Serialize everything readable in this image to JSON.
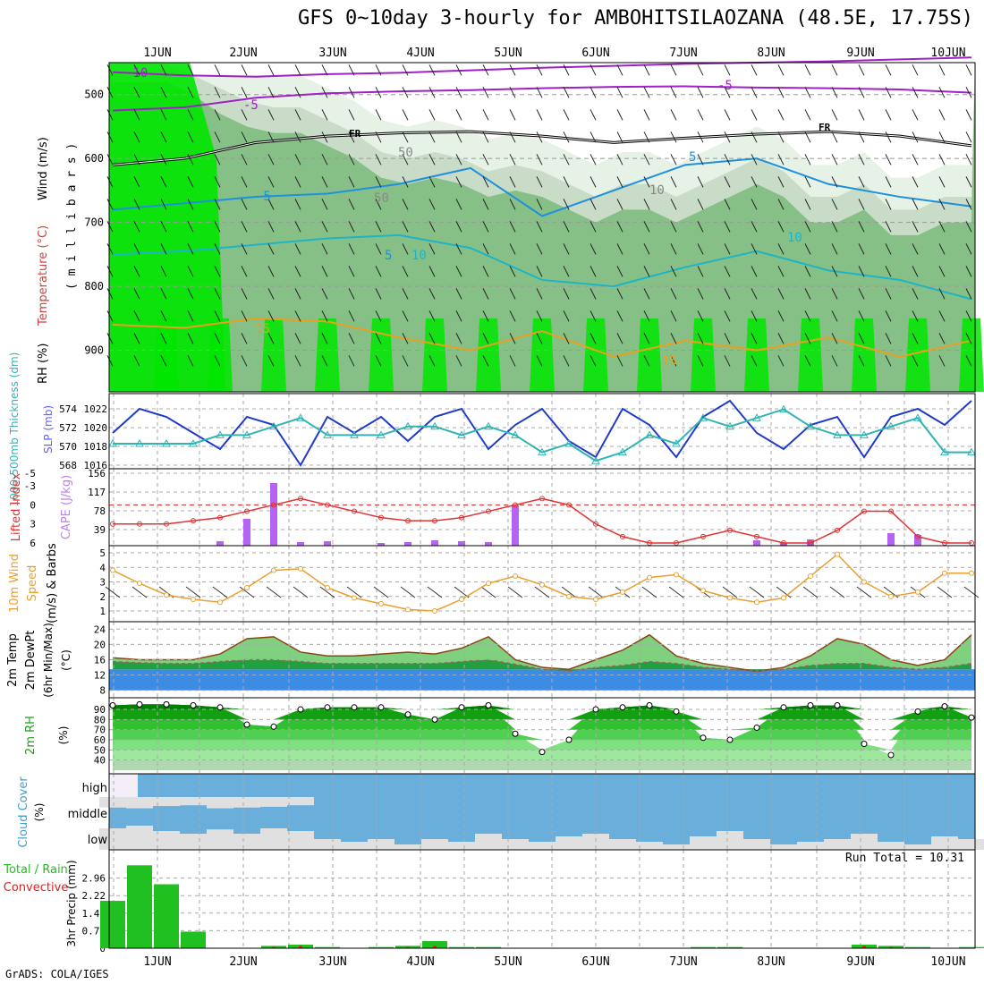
{
  "title": "GFS 0~10day 3-hourly for AMBOHITSILAOZANA (48.5E, 17.75S)",
  "credit": "GrADS: COLA/IGES",
  "run_total": "Run Total = 10.31",
  "colors": {
    "rh_light": "#e6f2e6",
    "rh_mid": "#c8dcc8",
    "rh_dark": "#87c087",
    "rh_green": "#00e600",
    "temp_purple": "#a020c8",
    "temp_blue": "#1e90dc",
    "temp_cyan": "#1eb4c8",
    "temp_orange": "#e8a020",
    "slp": "#1e3cc8",
    "thickness": "#30b4b4",
    "lifted": "#e03232",
    "cape": "#b464f0",
    "wind10": "#e8a030",
    "temp_fill": "#7fd07f",
    "temp_top": "#f0f070",
    "dew_fill": "#20a040",
    "blue_band": "#3c8ce6",
    "cloud": "#6aaedc",
    "cloud_bg": "#e0e0e0",
    "precip": "#20c020",
    "conv": "#e02020"
  },
  "chart_data": [
    {
      "type": "heatmap",
      "panel": "upper-air",
      "xticks": [
        "1JUN",
        "2JUN",
        "3JUN",
        "4JUN",
        "5JUN",
        "6JUN",
        "7JUN",
        "8JUN",
        "9JUN",
        "10JUN"
      ],
      "yticks": [
        500,
        600,
        700,
        800,
        900
      ],
      "ylabel_parts": [
        "RH (%)",
        "Temperature (°C)",
        "Wind (m/s)"
      ],
      "ylabel_units": "( m i l l i b a r s )",
      "contour_labels": [
        "-10",
        "-5",
        "-5",
        "FR",
        "FR",
        "-5",
        "5",
        "5",
        "10",
        "10",
        "15",
        "15",
        "50",
        "50",
        "10"
      ],
      "isotherms": [
        {
          "label": "-10",
          "color": "temp_purple",
          "p": [
            465,
            470,
            472,
            468,
            466,
            462,
            458,
            455,
            452,
            450,
            448,
            445,
            442
          ]
        },
        {
          "label": "-5",
          "color": "temp_purple",
          "p": [
            525,
            520,
            505,
            498,
            495,
            493,
            490,
            488,
            487,
            489,
            490,
            492,
            497
          ]
        },
        {
          "label": "FR",
          "color": "black",
          "p": [
            610,
            600,
            575,
            565,
            560,
            558,
            565,
            575,
            568,
            562,
            558,
            565,
            580
          ]
        },
        {
          "label": "5",
          "color": "temp_blue",
          "p": [
            680,
            670,
            660,
            655,
            640,
            615,
            690,
            650,
            610,
            600,
            640,
            660,
            675
          ]
        },
        {
          "label": "10",
          "color": "temp_cyan",
          "p": [
            750,
            745,
            735,
            725,
            720,
            740,
            790,
            800,
            770,
            745,
            775,
            790,
            820
          ]
        },
        {
          "label": "15",
          "color": "temp_orange",
          "p": [
            860,
            865,
            850,
            855,
            880,
            900,
            870,
            910,
            885,
            900,
            880,
            910,
            885
          ]
        }
      ]
    },
    {
      "type": "line",
      "panel": "slp-thickness",
      "yticks_left": [
        "574",
        "572",
        "570",
        "568"
      ],
      "yticks_right": [
        "1022",
        "1020",
        "1018",
        "1016"
      ],
      "ylabel_left": "1000-500mb Thickness (dm)",
      "ylabel_right": "SLP (mb)",
      "series": [
        {
          "key": "slp",
          "y": [
            1020,
            1023,
            1022,
            1020,
            1018,
            1022,
            1021,
            1016,
            1022,
            1020,
            1022,
            1019,
            1022,
            1023,
            1018,
            1021,
            1023,
            1019,
            1017,
            1023,
            1021,
            1017,
            1022,
            1024,
            1020,
            1018,
            1021,
            1022,
            1017,
            1022,
            1023,
            1021,
            1024
          ],
          "range": [
            1016,
            1024
          ]
        },
        {
          "key": "thickness",
          "y": [
            570,
            570,
            570,
            570,
            571,
            571,
            572,
            573,
            571,
            571,
            571,
            572,
            572,
            571,
            572,
            571,
            569,
            570,
            568,
            569,
            571,
            570,
            573,
            572,
            573,
            574,
            572,
            571,
            571,
            572,
            573,
            569,
            569
          ],
          "range": [
            567.5,
            575
          ]
        }
      ]
    },
    {
      "type": "bar",
      "panel": "lifted-cape",
      "yticks_left": [
        "-5",
        "-3",
        "0",
        "3",
        "6"
      ],
      "yticks_right": [
        "156",
        "117",
        "78",
        "39"
      ],
      "ylabel_left": "Lifted Index",
      "ylabel_right": "CAPE (J/kg)",
      "li_line": [
        3,
        3,
        3,
        2.5,
        2,
        1,
        0,
        -1,
        0,
        1,
        2,
        2.5,
        2.5,
        2,
        1,
        0,
        -1,
        0,
        3,
        5,
        6,
        6,
        5,
        4,
        5,
        6,
        6,
        4,
        1,
        1,
        5,
        6,
        6
      ],
      "cape": [
        0,
        0,
        0,
        0,
        10,
        60,
        140,
        8,
        10,
        0,
        6,
        8,
        12,
        10,
        8,
        90,
        0,
        0,
        0,
        0,
        0,
        0,
        0,
        0,
        12,
        6,
        14,
        0,
        0,
        28,
        24,
        0,
        0
      ]
    },
    {
      "type": "line",
      "panel": "wind10",
      "yticks": [
        "5",
        "4",
        "3",
        "2",
        "1"
      ],
      "ylabel": "10m Wind Speed (m/s) & Barbs",
      "y": [
        3.8,
        2.9,
        2.1,
        1.8,
        1.6,
        2.6,
        3.8,
        3.9,
        2.6,
        1.9,
        1.5,
        1.1,
        1.0,
        1.8,
        2.9,
        3.4,
        2.8,
        2.0,
        1.8,
        2.3,
        3.3,
        3.5,
        2.4,
        1.9,
        1.6,
        1.9,
        3.4,
        4.9,
        3.0,
        2.0,
        2.3,
        3.6,
        3.6
      ]
    },
    {
      "type": "area",
      "panel": "temp-dew",
      "yticks": [
        "24",
        "20",
        "16",
        "12",
        "8"
      ],
      "ylabel": "2m Temp 2m DewPt (6hr Min/Max) (°C)",
      "temp": [
        16.5,
        16,
        16,
        16,
        17.5,
        21.5,
        22,
        18,
        17,
        17,
        17.5,
        18,
        17.5,
        19,
        22,
        16,
        14,
        13.5,
        16,
        18.5,
        22.5,
        17,
        15,
        14,
        13,
        14,
        17,
        21.5,
        20,
        16,
        14.5,
        16,
        22.5
      ],
      "dew": [
        15.5,
        15.2,
        15,
        15,
        15.5,
        16,
        16,
        15.5,
        15,
        15,
        15,
        15,
        15,
        15.5,
        16,
        14.8,
        13.5,
        13,
        14,
        14.5,
        15.5,
        15,
        14,
        13.5,
        13,
        13.5,
        14.5,
        15,
        15,
        14,
        13.5,
        14,
        15
      ]
    },
    {
      "type": "area",
      "panel": "rh2m",
      "yticks": [
        "90",
        "80",
        "70",
        "60",
        "50",
        "40"
      ],
      "ylabel": "2m RH (%)",
      "y": [
        94,
        95,
        95,
        94,
        92,
        75,
        73,
        90,
        92,
        92,
        92,
        85,
        80,
        92,
        94,
        66,
        48,
        60,
        90,
        92,
        94,
        88,
        62,
        60,
        72,
        92,
        94,
        94,
        56,
        45,
        88,
        93,
        82
      ]
    },
    {
      "type": "area",
      "panel": "cloud",
      "yticks": [
        "high",
        "middle",
        "low"
      ],
      "ylabel": "Cloud Cover (%)",
      "low": [
        40,
        45,
        35,
        30,
        38,
        30,
        40,
        35,
        20,
        15,
        20,
        10,
        20,
        15,
        30,
        20,
        15,
        25,
        30,
        20,
        15,
        10,
        25,
        35,
        20,
        10,
        15,
        20,
        30,
        15,
        10,
        25,
        20
      ],
      "mid": [
        70,
        75,
        60,
        55,
        75,
        70,
        65,
        55,
        0,
        0,
        0,
        0,
        0,
        0,
        0,
        0,
        0,
        0,
        0,
        0,
        0,
        0,
        0,
        0,
        0,
        0,
        0,
        0,
        0,
        0,
        0,
        0,
        0
      ]
    },
    {
      "type": "bar",
      "panel": "precip",
      "yticks": [
        "2.96",
        "2.22",
        "1.48",
        "0.74",
        "0"
      ],
      "ylabel_left": "Total / Rain",
      "ylabel_conv": "Convective",
      "ylabel": "3hr Precip (mm)",
      "total": [
        2,
        3.5,
        2.7,
        0.7,
        0,
        0,
        0.1,
        0.15,
        0.05,
        0,
        0.05,
        0.1,
        0.3,
        0.05,
        0.05,
        0,
        0,
        0,
        0,
        0,
        0,
        0,
        0.05,
        0.05,
        0,
        0,
        0,
        0,
        0.15,
        0.1,
        0.05,
        0,
        0.05
      ],
      "conv": [
        0,
        0,
        0,
        0,
        0,
        0,
        0.05,
        0.1,
        0,
        0,
        0,
        0.05,
        0.1,
        0,
        0,
        0,
        0,
        0,
        0,
        0,
        0,
        0,
        0,
        0,
        0,
        0,
        0,
        0,
        0.1,
        0.05,
        0,
        0,
        0
      ]
    }
  ]
}
